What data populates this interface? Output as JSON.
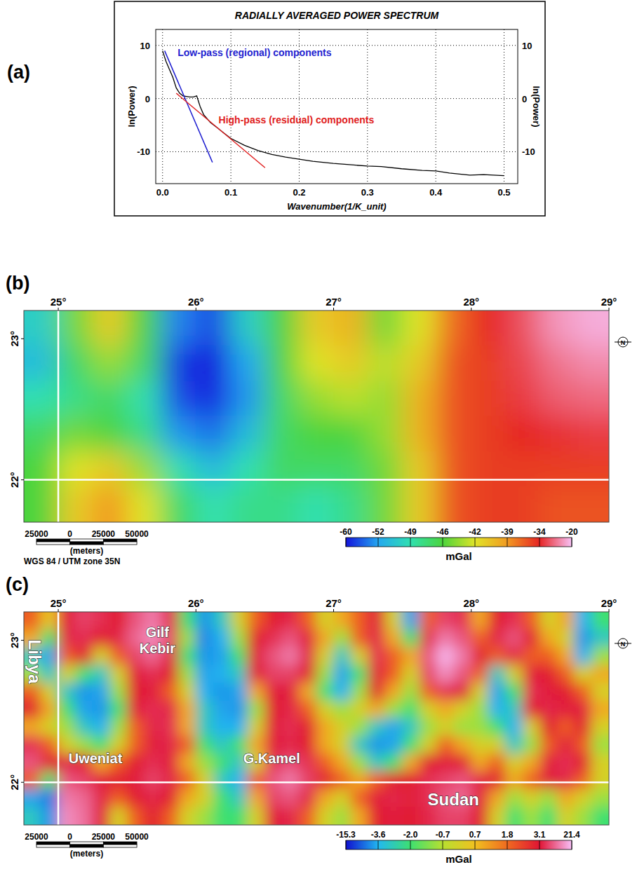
{
  "chart_data": [
    {
      "type": "line",
      "panel_label": "(a)",
      "title": "RADIALLY AVERAGED POWER SPECTRUM",
      "xlabel": "Wavenumber(1/K_unit)",
      "ylabel": "ln(Power)",
      "ylabel_right": "ln(Power)",
      "x": [
        0,
        0.005,
        0.01,
        0.015,
        0.02,
        0.025,
        0.03,
        0.04,
        0.045,
        0.05,
        0.055,
        0.06,
        0.07,
        0.08,
        0.09,
        0.1,
        0.12,
        0.14,
        0.16,
        0.18,
        0.2,
        0.22,
        0.25,
        0.28,
        0.3,
        0.32,
        0.35,
        0.38,
        0.4,
        0.42,
        0.45,
        0.47,
        0.5
      ],
      "values": [
        9,
        7,
        5.5,
        4,
        2,
        1,
        0.5,
        0.3,
        0.3,
        0.5,
        -1.5,
        -3,
        -4.5,
        -5.5,
        -6.5,
        -7.5,
        -8.8,
        -9.8,
        -10.5,
        -11,
        -11.4,
        -11.8,
        -12.2,
        -12.5,
        -12.7,
        -12.8,
        -13.2,
        -13.5,
        -13.6,
        -14,
        -14.4,
        -14.3,
        -14.5
      ],
      "color": "#000000",
      "xlim": [
        -0.01,
        0.52
      ],
      "ylim": [
        -16,
        13
      ],
      "xticks": [
        {
          "value": 0,
          "label": "0.0"
        },
        0.1,
        0.2,
        0.3,
        0.4,
        0.5
      ],
      "yticks": [
        -10,
        0,
        10
      ],
      "grid": true,
      "fit_lines": [
        {
          "label": "Low-pass (regional) components",
          "color": "#1f1fd0",
          "x": [
            0.003,
            0.073
          ],
          "values": [
            9,
            -12
          ],
          "label_at": [
            0.022,
            8
          ]
        },
        {
          "label": "High-pass (residual) components",
          "color": "#e02020",
          "x": [
            0.02,
            0.15
          ],
          "values": [
            1,
            -13
          ],
          "label_at": [
            0.082,
            -4.6
          ]
        }
      ]
    },
    {
      "type": "heatmap",
      "panel_label": "(b)",
      "xlim": [
        24.75,
        29.0
      ],
      "ylim": [
        21.7,
        23.2
      ],
      "xticks": [
        {
          "value": 25,
          "label": "25°"
        },
        {
          "value": 26,
          "label": "26°"
        },
        {
          "value": 27,
          "label": "27°"
        },
        {
          "value": 28,
          "label": "28°"
        },
        {
          "value": 29,
          "label": "29°"
        }
      ],
      "yticks": [
        {
          "value": 22,
          "label": "22°"
        },
        {
          "value": 23,
          "label": "23°"
        }
      ],
      "boundary_lon": 25,
      "boundary_lat": 22,
      "x": [
        24.875,
        25.125,
        25.375,
        25.625,
        25.875,
        26.125,
        26.375,
        26.625,
        26.875,
        27.125,
        27.375,
        27.625,
        27.875,
        28.125,
        28.375,
        28.625,
        28.875
      ],
      "y": [
        23.075,
        22.825,
        22.575,
        22.325,
        22.075,
        21.825
      ],
      "cells": [
        [
          -50,
          -45,
          -41,
          -46,
          -54,
          -57,
          -50,
          -46,
          -41,
          -40,
          -45,
          -42,
          -37,
          -34,
          -30,
          -24,
          -22
        ],
        [
          -51,
          -47,
          -44,
          -47,
          -58,
          -60,
          -52,
          -46,
          -42,
          -41,
          -43,
          -41,
          -36,
          -35,
          -31,
          -27,
          -25
        ],
        [
          -49,
          -48,
          -47,
          -49,
          -57,
          -59,
          -53,
          -47,
          -44,
          -43,
          -44,
          -40,
          -36,
          -35,
          -32,
          -29,
          -28
        ],
        [
          -47,
          -45,
          -46,
          -48,
          -53,
          -55,
          -51,
          -47,
          -46,
          -46,
          -44,
          -40,
          -36,
          -35,
          -34,
          -33,
          -32
        ],
        [
          -46,
          -42,
          -41,
          -44,
          -49,
          -51,
          -49,
          -47,
          -47,
          -47,
          -45,
          -41,
          -36,
          -35,
          -35,
          -35,
          -35
        ],
        [
          -46,
          -41,
          -39,
          -42,
          -47,
          -49,
          -48,
          -48,
          -49,
          -48,
          -45,
          -41,
          -36,
          -35,
          -35,
          -36,
          -36
        ]
      ],
      "colorbar": {
        "ticks": [
          -60,
          -52,
          -49,
          -46,
          -42,
          -39,
          -34,
          -20
        ],
        "colors": [
          "#1414dc",
          "#24a8f0",
          "#30e0b0",
          "#4cd43c",
          "#e0e428",
          "#f29a22",
          "#e62424",
          "#f8c4f8"
        ],
        "label": "mGal"
      },
      "scale_bar": {
        "ticks": [
          {
            "value": -25000,
            "label": "25000"
          },
          0,
          25000,
          50000
        ],
        "label": "(meters)"
      },
      "projection": "WGS 84 / UTM zone 35N",
      "north_label": "N"
    },
    {
      "type": "heatmap",
      "panel_label": "(c)",
      "xlim": [
        24.75,
        29.0
      ],
      "ylim": [
        21.7,
        23.2
      ],
      "xticks": [
        {
          "value": 25,
          "label": "25°"
        },
        {
          "value": 26,
          "label": "26°"
        },
        {
          "value": 27,
          "label": "27°"
        },
        {
          "value": 28,
          "label": "28°"
        },
        {
          "value": 29,
          "label": "29°"
        }
      ],
      "yticks": [
        {
          "value": 22,
          "label": "22°"
        },
        {
          "value": 23,
          "label": "23°"
        }
      ],
      "boundary_lon": 25,
      "boundary_lat": 22,
      "x": [
        24.8125,
        24.9375,
        25.0625,
        25.1875,
        25.3125,
        25.4375,
        25.5625,
        25.6875,
        25.8125,
        25.9375,
        26.0625,
        26.1875,
        26.3125,
        26.4375,
        26.5625,
        26.6875,
        26.8125,
        26.9375,
        27.0625,
        27.1875,
        27.3125,
        27.4375,
        27.5625,
        27.6875,
        27.8125,
        27.9375,
        28.0625,
        28.1875,
        28.3125,
        28.4375,
        28.5625,
        28.6875,
        28.8125,
        28.9375
      ],
      "y": [
        23.1375,
        23.0125,
        22.8875,
        22.7625,
        22.6375,
        22.5125,
        22.3875,
        22.2625,
        22.1375,
        22.0125,
        21.8875,
        21.7625
      ],
      "cells": [
        [
          2,
          0.5,
          4,
          8,
          6,
          3,
          10,
          14,
          6,
          -2,
          -6,
          -3,
          0,
          2,
          3,
          5,
          2,
          0,
          1,
          2,
          4,
          0,
          -5,
          2,
          8,
          6,
          1,
          3,
          6,
          2,
          0,
          1,
          -4,
          -2
        ],
        [
          1,
          -2,
          5,
          6,
          3,
          5,
          12,
          16,
          8,
          -1,
          -7,
          -4,
          -1,
          3,
          6,
          10,
          4,
          1,
          -1,
          2,
          5,
          1,
          -2,
          6,
          14,
          10,
          2,
          5,
          10,
          3,
          1,
          0,
          -6,
          -3
        ],
        [
          -3,
          -5,
          2,
          3,
          0,
          2,
          8,
          12,
          5,
          -2,
          -6,
          -5,
          -2,
          4,
          10,
          14,
          5,
          0,
          -3,
          0,
          6,
          2,
          1,
          10,
          20,
          14,
          3,
          2,
          5,
          2,
          2,
          1,
          -4,
          -1
        ],
        [
          -1,
          -3,
          0,
          -2,
          -3,
          0,
          4,
          6,
          3,
          -1,
          -5,
          -4,
          -3,
          3,
          8,
          8,
          3,
          -1,
          -5,
          -2,
          4,
          2,
          0,
          8,
          16,
          10,
          2,
          -3,
          0,
          4,
          3,
          2,
          0,
          1
        ],
        [
          2,
          0,
          -3,
          -6,
          -5,
          -1,
          3,
          4,
          2,
          0,
          -4,
          -6,
          -5,
          1,
          4,
          4,
          1,
          -2,
          -4,
          -1,
          3,
          1,
          -1,
          2,
          6,
          4,
          0,
          -5,
          -2,
          6,
          4,
          3,
          2,
          0
        ],
        [
          3,
          1,
          -2,
          -5,
          -6,
          -2,
          4,
          6,
          5,
          1,
          -3,
          -5,
          -6,
          -1,
          3,
          5,
          2,
          0,
          -1,
          0,
          1,
          -1,
          -2,
          0,
          1,
          0,
          -1,
          -4,
          -3,
          3,
          5,
          4,
          4,
          1
        ],
        [
          1,
          0,
          -1,
          -3,
          -4,
          -1,
          2,
          5,
          6,
          1,
          -3,
          -4,
          -4,
          0,
          4,
          6,
          3,
          1,
          0,
          -1,
          -3,
          -5,
          -3,
          -1,
          0,
          -1,
          -1,
          -2,
          -4,
          0,
          3,
          2,
          3,
          0
        ],
        [
          6,
          2,
          0,
          -1,
          -2,
          0,
          2,
          4,
          5,
          2,
          -2,
          -3,
          -2,
          1,
          4,
          5,
          3,
          1,
          0,
          -3,
          -6,
          -5,
          -2,
          0,
          2,
          1,
          0,
          0,
          -3,
          -1,
          2,
          4,
          2,
          -1
        ],
        [
          10,
          3,
          5,
          3,
          1,
          2,
          3,
          6,
          4,
          1,
          -1,
          -2,
          -3,
          0,
          6,
          9,
          6,
          2,
          1,
          -1,
          -3,
          -2,
          1,
          3,
          4,
          3,
          1,
          2,
          0,
          1,
          4,
          6,
          3,
          0
        ],
        [
          2,
          -2,
          10,
          8,
          4,
          3,
          4,
          8,
          5,
          2,
          0,
          -3,
          -4,
          2,
          10,
          14,
          8,
          3,
          2,
          1,
          2,
          3,
          3,
          6,
          8,
          10,
          5,
          3,
          1,
          2,
          4,
          5,
          2,
          0
        ],
        [
          -5,
          -8,
          14,
          12,
          5,
          2,
          3,
          5,
          3,
          1,
          0,
          -2,
          -3,
          1,
          8,
          10,
          5,
          1,
          0,
          2,
          4,
          5,
          4,
          6,
          10,
          12,
          4,
          1,
          -1,
          0,
          -1,
          1,
          0,
          -1
        ],
        [
          -3,
          -6,
          16,
          13,
          4,
          0,
          2,
          3,
          2,
          0,
          -1,
          -2,
          -2,
          0,
          4,
          5,
          2,
          0,
          -1,
          1,
          3,
          4,
          3,
          5,
          8,
          8,
          3,
          0,
          -2,
          -1,
          -2,
          0,
          -1,
          -2
        ]
      ],
      "colorbar": {
        "ticks": [
          -15.3,
          -3.6,
          {
            "value": -2,
            "label": "-2.0"
          },
          -0.7,
          0.7,
          1.8,
          3.1,
          21.4
        ],
        "colors": [
          "#1010d0",
          "#22b8f0",
          "#3ee070",
          "#b8e030",
          "#f0c020",
          "#f06a20",
          "#e01434",
          "#f8c0f8"
        ],
        "label": "mGal"
      },
      "scale_bar": {
        "ticks": [
          {
            "value": -25000,
            "label": "25000"
          },
          0,
          25000,
          50000
        ],
        "label": "(meters)"
      },
      "north_label": "N",
      "place_labels": [
        {
          "text": "Gilf Kebir",
          "lon": 25.72,
          "lat": 23.0,
          "kind": "place"
        },
        {
          "text": "Libya",
          "lon": 24.83,
          "lat": 22.85,
          "kind": "country",
          "vertical": true
        },
        {
          "text": "Uweniat",
          "lon": 25.27,
          "lat": 22.17,
          "kind": "place"
        },
        {
          "text": "G.Kamel",
          "lon": 26.55,
          "lat": 22.17,
          "kind": "place"
        },
        {
          "text": "Sudan",
          "lon": 27.87,
          "lat": 21.88,
          "kind": "country"
        }
      ]
    }
  ]
}
